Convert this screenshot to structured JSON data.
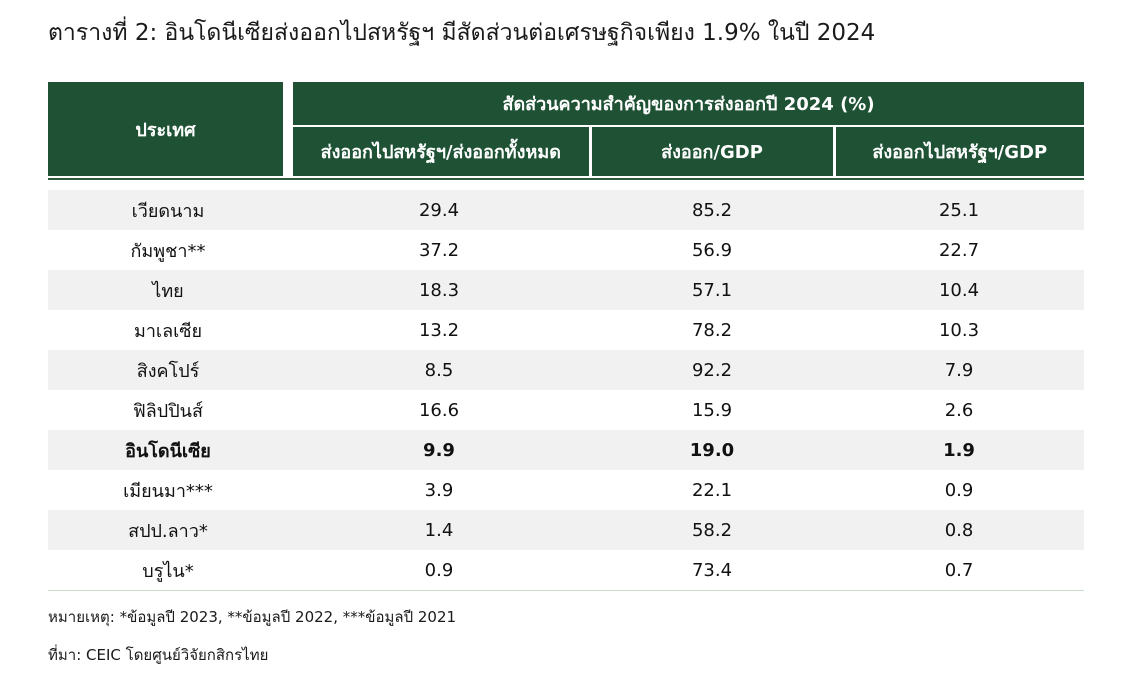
{
  "title": "ตารางที่ 2: อินโดนีเซียส่งออกไปสหรัฐฯ มีสัดส่วนต่อเศรษฐกิจเพียง 1.9% ในปี 2024",
  "table": {
    "country_header": "ประเทศ",
    "group_header": "สัดส่วนความสำคัญของการส่งออกปี 2024 (%)",
    "sub_headers": [
      "ส่งออกไปสหรัฐฯ/ส่งออกทั้งหมด",
      "ส่งออก/GDP",
      "ส่งออกไปสหรัฐฯ/GDP"
    ],
    "rows": [
      {
        "country": "เวียดนาม",
        "us_share": "29.4",
        "export_gdp": "85.2",
        "us_gdp": "25.1"
      },
      {
        "country": "กัมพูชา**",
        "us_share": "37.2",
        "export_gdp": "56.9",
        "us_gdp": "22.7"
      },
      {
        "country": "ไทย",
        "us_share": "18.3",
        "export_gdp": "57.1",
        "us_gdp": "10.4"
      },
      {
        "country": "มาเลเซีย",
        "us_share": "13.2",
        "export_gdp": "78.2",
        "us_gdp": "10.3"
      },
      {
        "country": "สิงคโปร์",
        "us_share": "8.5",
        "export_gdp": "92.2",
        "us_gdp": "7.9"
      },
      {
        "country": "ฟิลิปปินส์",
        "us_share": "16.6",
        "export_gdp": "15.9",
        "us_gdp": "2.6"
      },
      {
        "country": "อินโดนีเซีย",
        "us_share": "9.9",
        "export_gdp": "19.0",
        "us_gdp": "1.9"
      },
      {
        "country": "เมียนมา***",
        "us_share": "3.9",
        "export_gdp": "22.1",
        "us_gdp": "0.9"
      },
      {
        "country": "สปป.ลาว*",
        "us_share": "1.4",
        "export_gdp": "58.2",
        "us_gdp": "0.8"
      },
      {
        "country": "บรูไน*",
        "us_share": "0.9",
        "export_gdp": "73.4",
        "us_gdp": "0.7"
      }
    ]
  },
  "note": "หมายเหตุ: *ข้อมูลปี 2023, **ข้อมูลปี 2022, ***ข้อมูลปี 2021",
  "source": "ที่มา: CEIC โดยศูนย์วิจัยกสิกรไทย",
  "colors": {
    "header_bg": "#1f5234",
    "header_text": "#ffffff",
    "row_shade": "#f1f1f1"
  }
}
